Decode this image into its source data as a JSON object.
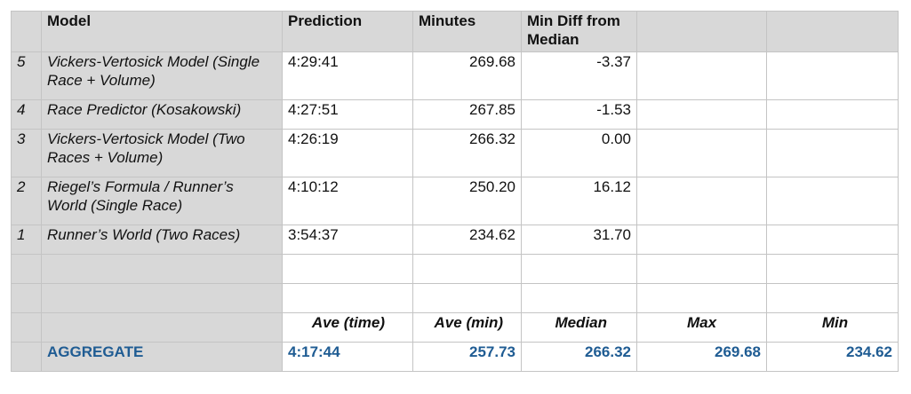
{
  "header": {
    "model": "Model",
    "prediction": "Prediction",
    "minutes": "Minutes",
    "min_diff": "Min Diff from Median",
    "extra1": "",
    "extra2": ""
  },
  "rows": [
    {
      "idx": "5",
      "model": "Vickers-Vertosick Model (Single Race + Volume)",
      "prediction": "4:29:41",
      "minutes": "269.68",
      "diff": "-3.37"
    },
    {
      "idx": "4",
      "model": "Race Predictor (Kosakowski)",
      "prediction": "4:27:51",
      "minutes": "267.85",
      "diff": "-1.53"
    },
    {
      "idx": "3",
      "model": "Vickers-Vertosick Model (Two Races + Volume)",
      "prediction": "4:26:19",
      "minutes": "266.32",
      "diff": "0.00"
    },
    {
      "idx": "2",
      "model": "Riegel’s Formula / Runner’s World (Single Race)",
      "prediction": "4:10:12",
      "minutes": "250.20",
      "diff": "16.12"
    },
    {
      "idx": "1",
      "model": "Runner’s World (Two Races)",
      "prediction": "3:54:37",
      "minutes": "234.62",
      "diff": "31.70"
    }
  ],
  "summary_labels": {
    "ave_time": "Ave (time)",
    "ave_min": "Ave (min)",
    "median": "Median",
    "max": "Max",
    "min": "Min"
  },
  "aggregate": {
    "label": "AGGREGATE",
    "ave_time": "4:17:44",
    "ave_min": "257.73",
    "median": "266.32",
    "max": "269.68",
    "min": "234.62"
  }
}
